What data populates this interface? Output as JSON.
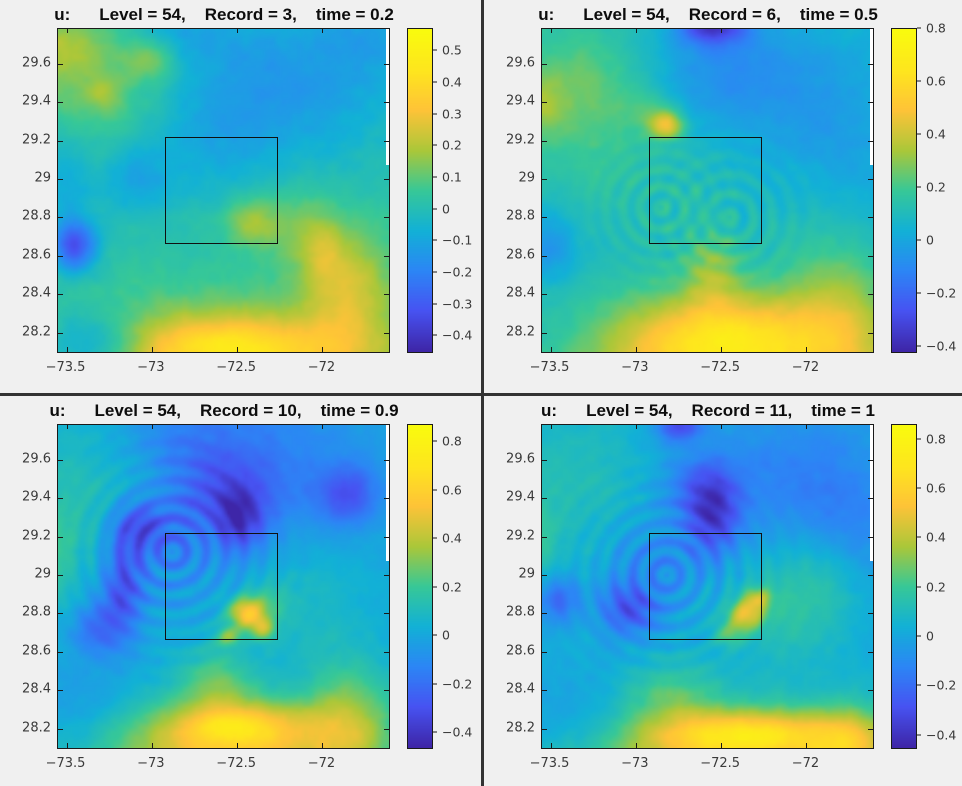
{
  "chart_data": [
    {
      "type": "heatmap",
      "title": {
        "var": "u:",
        "level": "Level = 54,",
        "record": "Record = 3,",
        "time": "time = 0.2"
      },
      "xlabel": "",
      "ylabel": "",
      "xlim": [
        -73.55,
        -71.61
      ],
      "ylim": [
        28.1,
        29.78
      ],
      "xticks": {
        "values": [
          -73.5,
          -73,
          -72.5,
          -72
        ],
        "labels": [
          "−73.5",
          "−73",
          "−72.5",
          "−72"
        ]
      },
      "yticks": {
        "values": [
          29.6,
          29.4,
          29.2,
          29,
          28.8,
          28.6,
          28.4,
          28.2
        ],
        "labels": [
          "29.6",
          "29.4",
          "29.2",
          "29",
          "28.8",
          "28.6",
          "28.4",
          "28.2"
        ]
      },
      "colorbar": {
        "min": -0.45,
        "max": 0.57,
        "ticks": {
          "values": [
            0.5,
            0.4,
            0.3,
            0.2,
            0.1,
            0,
            -0.1,
            -0.2,
            -0.3,
            -0.4
          ],
          "labels": [
            "0.5",
            "0.4",
            "0.3",
            "0.2",
            "0.1",
            "0",
            "−0.1",
            "−0.2",
            "−0.3",
            "−0.4"
          ]
        }
      },
      "overlay_box": {
        "x1": -72.92,
        "x2": -72.26,
        "y1": 28.66,
        "y2": 29.22
      },
      "field": {
        "base": 0.03,
        "noise": 0.022,
        "blobs": [
          [
            -73.35,
            29.55,
            0.45,
            0.3,
            0.12
          ],
          [
            -73.0,
            29.62,
            0.14,
            0.1,
            0.13
          ],
          [
            -73.28,
            29.44,
            0.1,
            0.08,
            0.09
          ],
          [
            -73.55,
            29.7,
            0.2,
            0.15,
            0.1
          ],
          [
            -72.25,
            29.5,
            0.75,
            0.45,
            -0.17
          ],
          [
            -71.7,
            29.75,
            0.3,
            0.2,
            -0.08
          ],
          [
            -72.65,
            29.15,
            0.35,
            0.3,
            -0.06
          ],
          [
            -73.1,
            28.98,
            0.22,
            0.18,
            -0.12
          ],
          [
            -73.45,
            28.65,
            0.13,
            0.13,
            -0.33
          ],
          [
            -73.5,
            28.95,
            0.15,
            0.3,
            -0.1
          ],
          [
            -72.42,
            28.78,
            0.15,
            0.13,
            0.16
          ],
          [
            -72.15,
            28.75,
            0.2,
            0.2,
            0.1
          ],
          [
            -72.5,
            28.02,
            1.0,
            0.3,
            0.33
          ],
          [
            -72.55,
            28.15,
            0.5,
            0.13,
            0.15
          ],
          [
            -71.85,
            28.45,
            0.25,
            0.3,
            0.2
          ],
          [
            -72.0,
            28.62,
            0.12,
            0.18,
            0.1
          ],
          [
            -73.35,
            28.12,
            0.3,
            0.18,
            -0.22
          ],
          [
            -72.85,
            29.75,
            0.3,
            0.15,
            -0.08
          ]
        ],
        "ripples": []
      }
    },
    {
      "type": "heatmap",
      "title": {
        "var": "u:",
        "level": "Level = 54,",
        "record": "Record = 6,",
        "time": "time = 0.5"
      },
      "xlabel": "",
      "ylabel": "",
      "xlim": [
        -73.55,
        -71.61
      ],
      "ylim": [
        28.1,
        29.78
      ],
      "xticks": {
        "values": [
          -73.5,
          -73,
          -72.5,
          -72
        ],
        "labels": [
          "−73.5",
          "−73",
          "−72.5",
          "−72"
        ]
      },
      "yticks": {
        "values": [
          29.6,
          29.4,
          29.2,
          29,
          28.8,
          28.6,
          28.4,
          28.2
        ],
        "labels": [
          "29.6",
          "29.4",
          "29.2",
          "29",
          "28.8",
          "28.6",
          "28.4",
          "28.2"
        ]
      },
      "colorbar": {
        "min": -0.42,
        "max": 0.8,
        "ticks": {
          "values": [
            0.8,
            0.6,
            0.4,
            0.2,
            0,
            -0.2,
            -0.4
          ],
          "labels": [
            "0.8",
            "0.6",
            "0.4",
            "0.2",
            "0",
            "−0.2",
            "−0.4"
          ]
        }
      },
      "overlay_box": {
        "x1": -72.92,
        "x2": -72.26,
        "y1": 28.66,
        "y2": 29.22
      },
      "field": {
        "base": 0.07,
        "noise": 0.025,
        "blobs": [
          [
            -73.35,
            29.5,
            0.5,
            0.35,
            0.18
          ],
          [
            -73.55,
            29.38,
            0.12,
            0.14,
            0.12
          ],
          [
            -73.2,
            29.05,
            0.5,
            0.4,
            0.07
          ],
          [
            -72.55,
            29.8,
            0.2,
            0.1,
            -0.38
          ],
          [
            -72.5,
            29.55,
            0.5,
            0.3,
            -0.16
          ],
          [
            -71.85,
            29.25,
            0.45,
            0.45,
            -0.1
          ],
          [
            -72.82,
            29.28,
            0.1,
            0.07,
            0.35
          ],
          [
            -72.9,
            29.35,
            0.15,
            0.1,
            0.1
          ],
          [
            -73.5,
            28.65,
            0.15,
            0.18,
            -0.15
          ],
          [
            -72.6,
            28.85,
            0.35,
            0.3,
            0.04
          ],
          [
            -72.5,
            28.0,
            1.0,
            0.38,
            0.45
          ],
          [
            -72.45,
            28.2,
            0.55,
            0.2,
            0.25
          ],
          [
            -72.55,
            28.52,
            0.15,
            0.18,
            0.18
          ],
          [
            -71.8,
            28.3,
            0.3,
            0.35,
            0.2
          ],
          [
            -73.35,
            28.15,
            0.35,
            0.2,
            -0.05
          ],
          [
            -72.0,
            28.75,
            0.3,
            0.3,
            0.05
          ]
        ],
        "ripples": [
          [
            -72.85,
            28.85,
            0.3,
            0.09,
            0.05
          ],
          [
            -72.45,
            28.8,
            0.35,
            0.1,
            0.05
          ]
        ]
      }
    },
    {
      "type": "heatmap",
      "title": {
        "var": "u:",
        "level": "Level = 54,",
        "record": "Record = 10,",
        "time": "time = 0.9"
      },
      "xlabel": "",
      "ylabel": "",
      "xlim": [
        -73.55,
        -71.61
      ],
      "ylim": [
        28.1,
        29.78
      ],
      "xticks": {
        "values": [
          -73.5,
          -73,
          -72.5,
          -72
        ],
        "labels": [
          "−73.5",
          "−73",
          "−72.5",
          "−72"
        ]
      },
      "yticks": {
        "values": [
          29.6,
          29.4,
          29.2,
          29,
          28.8,
          28.6,
          28.4,
          28.2
        ],
        "labels": [
          "29.6",
          "29.4",
          "29.2",
          "29",
          "28.8",
          "28.6",
          "28.4",
          "28.2"
        ]
      },
      "colorbar": {
        "min": -0.46,
        "max": 0.87,
        "ticks": {
          "values": [
            0.8,
            0.6,
            0.4,
            0.2,
            0,
            -0.2,
            -0.4
          ],
          "labels": [
            "0.8",
            "0.6",
            "0.4",
            "0.2",
            "0",
            "−0.2",
            "−0.4"
          ]
        }
      },
      "overlay_box": {
        "x1": -72.92,
        "x2": -72.26,
        "y1": 28.66,
        "y2": 29.22
      },
      "field": {
        "base": 0.02,
        "noise": 0.03,
        "blobs": [
          [
            -73.4,
            29.35,
            0.4,
            0.5,
            0.12
          ],
          [
            -73.57,
            29.1,
            0.1,
            0.25,
            0.12
          ],
          [
            -72.3,
            29.55,
            0.65,
            0.4,
            -0.16
          ],
          [
            -72.6,
            29.42,
            0.3,
            0.22,
            -0.2
          ],
          [
            -72.48,
            29.28,
            0.13,
            0.16,
            -0.26
          ],
          [
            -71.85,
            29.42,
            0.18,
            0.15,
            -0.24
          ],
          [
            -73.07,
            29.25,
            0.16,
            0.13,
            -0.28
          ],
          [
            -73.17,
            28.95,
            0.13,
            0.28,
            -0.3
          ],
          [
            -73.32,
            28.72,
            0.16,
            0.16,
            -0.22
          ],
          [
            -72.9,
            29.1,
            0.3,
            0.25,
            -0.12
          ],
          [
            -72.45,
            28.8,
            0.1,
            0.08,
            0.5
          ],
          [
            -72.35,
            28.72,
            0.07,
            0.06,
            0.33
          ],
          [
            -72.55,
            28.68,
            0.07,
            0.05,
            0.28
          ],
          [
            -72.33,
            28.85,
            0.12,
            0.1,
            0.16
          ],
          [
            -72.1,
            28.85,
            0.3,
            0.3,
            0.08
          ],
          [
            -72.55,
            28.08,
            0.85,
            0.25,
            0.45
          ],
          [
            -72.5,
            28.22,
            0.4,
            0.12,
            0.36
          ],
          [
            -72.62,
            28.45,
            0.22,
            0.16,
            0.22
          ],
          [
            -71.85,
            28.25,
            0.25,
            0.3,
            0.28
          ],
          [
            -73.4,
            28.25,
            0.3,
            0.25,
            -0.1
          ],
          [
            -72.85,
            29.75,
            0.4,
            0.2,
            -0.1
          ]
        ],
        "ripples": [
          [
            -72.88,
            29.12,
            0.45,
            0.1,
            0.09
          ]
        ]
      }
    },
    {
      "type": "heatmap",
      "title": {
        "var": "u:",
        "level": "Level = 54,",
        "record": "Record = 11,",
        "time": "time = 1"
      },
      "xlabel": "",
      "ylabel": "",
      "xlim": [
        -73.55,
        -71.61
      ],
      "ylim": [
        28.1,
        29.78
      ],
      "xticks": {
        "values": [
          -73.5,
          -73,
          -72.5,
          -72
        ],
        "labels": [
          "−73.5",
          "−73",
          "−72.5",
          "−72"
        ]
      },
      "yticks": {
        "values": [
          29.6,
          29.4,
          29.2,
          29,
          28.8,
          28.6,
          28.4,
          28.2
        ],
        "labels": [
          "29.6",
          "29.4",
          "29.2",
          "29",
          "28.8",
          "28.6",
          "28.4",
          "28.2"
        ]
      },
      "colorbar": {
        "min": -0.45,
        "max": 0.86,
        "ticks": {
          "values": [
            0.8,
            0.6,
            0.4,
            0.2,
            0,
            -0.2,
            -0.4
          ],
          "labels": [
            "0.8",
            "0.6",
            "0.4",
            "0.2",
            "0",
            "−0.2",
            "−0.4"
          ]
        }
      },
      "overlay_box": {
        "x1": -72.92,
        "x2": -72.26,
        "y1": 28.66,
        "y2": 29.22
      },
      "field": {
        "base": 0.02,
        "noise": 0.03,
        "blobs": [
          [
            -73.35,
            29.45,
            0.45,
            0.45,
            0.11
          ],
          [
            -73.57,
            29.2,
            0.1,
            0.2,
            0.12
          ],
          [
            -72.75,
            29.77,
            0.13,
            0.08,
            -0.32
          ],
          [
            -72.55,
            29.3,
            0.16,
            0.2,
            -0.33
          ],
          [
            -72.62,
            29.48,
            0.22,
            0.16,
            -0.17
          ],
          [
            -72.05,
            29.5,
            0.55,
            0.4,
            -0.15
          ],
          [
            -71.75,
            29.2,
            0.3,
            0.3,
            -0.1
          ],
          [
            -73.05,
            28.82,
            0.16,
            0.13,
            -0.28
          ],
          [
            -73.45,
            28.87,
            0.12,
            0.12,
            -0.24
          ],
          [
            -72.92,
            29.05,
            0.3,
            0.28,
            -0.13
          ],
          [
            -72.35,
            28.8,
            0.1,
            0.08,
            0.42
          ],
          [
            -72.28,
            28.88,
            0.07,
            0.05,
            0.28
          ],
          [
            -72.45,
            28.7,
            0.1,
            0.07,
            0.18
          ],
          [
            -72.12,
            28.85,
            0.35,
            0.35,
            0.13
          ],
          [
            -72.45,
            28.05,
            0.95,
            0.25,
            0.45
          ],
          [
            -72.35,
            28.18,
            0.5,
            0.11,
            0.37
          ],
          [
            -72.8,
            28.38,
            0.28,
            0.18,
            0.18
          ],
          [
            -71.75,
            28.12,
            0.25,
            0.2,
            0.3
          ],
          [
            -73.35,
            28.22,
            0.35,
            0.22,
            -0.1
          ],
          [
            -71.9,
            29.0,
            0.25,
            0.25,
            0.1
          ]
        ],
        "ripples": [
          [
            -72.82,
            29.0,
            0.45,
            0.1,
            0.08
          ]
        ]
      }
    }
  ],
  "colormap": {
    "name": "parula",
    "stops": [
      "#3e26a8",
      "#4753f2",
      "#2c86f5",
      "#12b1d6",
      "#37c897",
      "#abc739",
      "#fec338",
      "#fee61e",
      "#f9fb0e"
    ]
  }
}
